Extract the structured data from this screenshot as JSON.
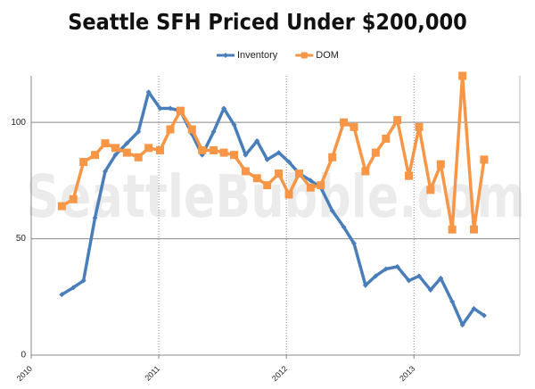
{
  "chart_data": {
    "type": "line",
    "title": "Seattle SFH Priced Under $200,000",
    "watermark": "SeattleBubble.com",
    "x": [
      2010.24,
      2010.33,
      2010.41,
      2010.5,
      2010.58,
      2010.66,
      2010.75,
      2010.84,
      2010.92,
      2011.01,
      2011.09,
      2011.17,
      2011.26,
      2011.34,
      2011.43,
      2011.51,
      2011.59,
      2011.68,
      2011.77,
      2011.85,
      2011.94,
      2012.02,
      2012.1,
      2012.19,
      2012.27,
      2012.36,
      2012.45,
      2012.53,
      2012.62,
      2012.7,
      2012.78,
      2012.87,
      2012.96,
      2013.04,
      2013.13,
      2013.21,
      2013.3,
      2013.38,
      2013.47,
      2013.55
    ],
    "series": [
      {
        "name": "Inventory",
        "color": "#4a7ebb",
        "marker": "diamond",
        "values": [
          26,
          29,
          32,
          59,
          79,
          86,
          91,
          96,
          113,
          106,
          106,
          105,
          95,
          86,
          96,
          106,
          99,
          86,
          92,
          84,
          87,
          83,
          78,
          75,
          72,
          62,
          55,
          48,
          30,
          34,
          37,
          38,
          32,
          34,
          28,
          33,
          23,
          13,
          20,
          17
        ]
      },
      {
        "name": "DOM",
        "color": "#f79646",
        "marker": "square",
        "values": [
          64,
          67,
          83,
          86,
          91,
          89,
          87,
          85,
          89,
          88,
          97,
          105,
          97,
          88,
          88,
          87,
          86,
          79,
          76,
          73,
          78,
          69,
          78,
          72,
          73,
          85,
          100,
          98,
          79,
          87,
          93,
          101,
          77,
          98,
          71,
          82,
          54,
          120,
          54,
          84
        ]
      }
    ],
    "xlim": [
      2010,
      2013.83
    ],
    "xticks": [
      2010,
      2011,
      2012,
      2013
    ],
    "ylim": [
      0,
      120
    ],
    "yticks": [
      0,
      50,
      100
    ],
    "grid": true,
    "legend": "top"
  }
}
